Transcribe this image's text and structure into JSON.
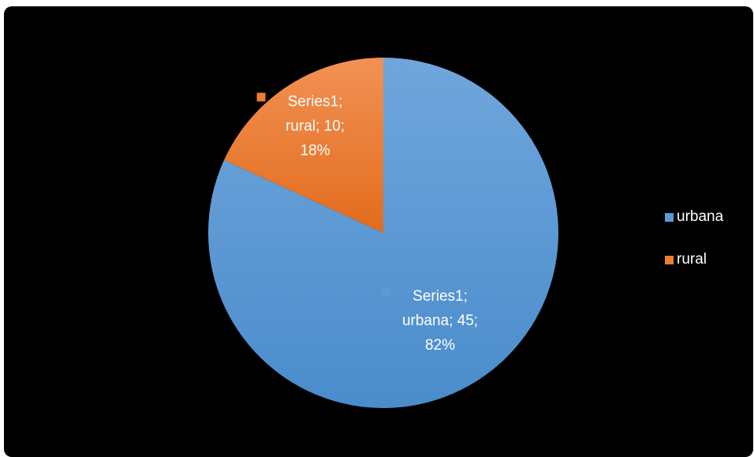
{
  "chart_data": {
    "type": "pie",
    "title": "",
    "series_name": "Series1",
    "categories": [
      "urbana",
      "rural"
    ],
    "values": [
      45,
      10
    ],
    "percentages": [
      "82%",
      "18%"
    ],
    "colors": [
      "#5b9bd5",
      "#ed7d31"
    ],
    "legend_position": "right",
    "start_angle_deg": 0,
    "data_labels": [
      {
        "lines": [
          "Series1;",
          "urbana; 45;",
          "82%"
        ]
      },
      {
        "lines": [
          "Series1;",
          "rural; 10;",
          "18%"
        ]
      }
    ]
  },
  "legend": {
    "items": [
      {
        "label": "urbana",
        "color": "#5b9bd5"
      },
      {
        "label": "rural",
        "color": "#ed7d31"
      }
    ]
  }
}
